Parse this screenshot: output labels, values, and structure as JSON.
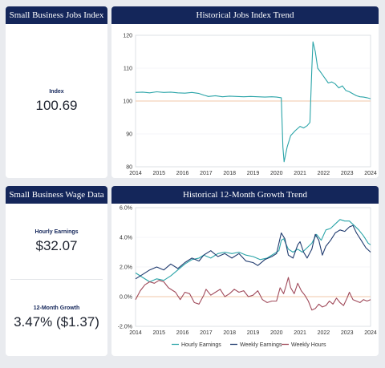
{
  "jobs_card": {
    "title": "Small Business Jobs Index",
    "label": "Index",
    "value": "100.69"
  },
  "trend_card": {
    "title": "Historical Jobs Index Trend"
  },
  "wage_card": {
    "title": "Small Business Wage Data",
    "hourly_label": "Hourly Earnings",
    "hourly_value": "$32.07",
    "growth_label": "12-Month Growth",
    "growth_value": "3.47% ($1.37)"
  },
  "growth_card": {
    "title": "Historical 12-Month Growth Trend"
  },
  "colors": {
    "navy": "#14265a",
    "teal": "#2aa4a8",
    "dark_blue": "#1f3a6e",
    "maroon": "#a04a5a",
    "ref_line": "#f2c7a8"
  },
  "chart_data": [
    {
      "type": "line",
      "title": "Historical Jobs Index Trend",
      "x_ticks": [
        "2014",
        "2015",
        "2016",
        "2017",
        "2018",
        "2019",
        "2020",
        "2021",
        "2022",
        "2023",
        "2024"
      ],
      "y_ticks": [
        "120",
        "110",
        "100",
        "90",
        "80"
      ],
      "ylim": [
        80,
        120
      ],
      "reference_line": 100,
      "series": [
        {
          "values": [
            [
              2014.0,
              102.6
            ],
            [
              2014.3,
              102.7
            ],
            [
              2014.6,
              102.5
            ],
            [
              2014.9,
              102.8
            ],
            [
              2015.2,
              102.6
            ],
            [
              2015.5,
              102.7
            ],
            [
              2015.8,
              102.5
            ],
            [
              2016.1,
              102.4
            ],
            [
              2016.4,
              102.6
            ],
            [
              2016.7,
              102.3
            ],
            [
              2016.9,
              101.8
            ],
            [
              2017.1,
              101.4
            ],
            [
              2017.4,
              101.6
            ],
            [
              2017.7,
              101.3
            ],
            [
              2018.0,
              101.5
            ],
            [
              2018.3,
              101.4
            ],
            [
              2018.6,
              101.3
            ],
            [
              2018.9,
              101.4
            ],
            [
              2019.2,
              101.3
            ],
            [
              2019.5,
              101.2
            ],
            [
              2019.8,
              101.3
            ],
            [
              2020.0,
              101.2
            ],
            [
              2020.2,
              101.0
            ],
            [
              2020.27,
              86.0
            ],
            [
              2020.32,
              81.5
            ],
            [
              2020.45,
              86.0
            ],
            [
              2020.6,
              89.5
            ],
            [
              2020.8,
              91.0
            ],
            [
              2021.0,
              92.3
            ],
            [
              2021.15,
              91.8
            ],
            [
              2021.3,
              92.5
            ],
            [
              2021.42,
              93.5
            ],
            [
              2021.5,
              110.0
            ],
            [
              2021.55,
              118.0
            ],
            [
              2021.65,
              115.0
            ],
            [
              2021.75,
              110.0
            ],
            [
              2021.9,
              108.5
            ],
            [
              2022.05,
              107.0
            ],
            [
              2022.2,
              105.5
            ],
            [
              2022.35,
              105.8
            ],
            [
              2022.5,
              105.2
            ],
            [
              2022.65,
              104.0
            ],
            [
              2022.8,
              104.6
            ],
            [
              2022.95,
              103.2
            ],
            [
              2023.1,
              102.8
            ],
            [
              2023.25,
              102.2
            ],
            [
              2023.4,
              101.6
            ],
            [
              2023.55,
              101.3
            ],
            [
              2023.7,
              101.2
            ],
            [
              2023.85,
              101.0
            ],
            [
              2024.0,
              100.7
            ]
          ]
        }
      ]
    },
    {
      "type": "line",
      "title": "Historical 12-Month Growth Trend",
      "x_ticks": [
        "2014",
        "2015",
        "2016",
        "2017",
        "2018",
        "2019",
        "2020",
        "2021",
        "2022",
        "2023",
        "2024"
      ],
      "y_ticks": [
        "6.0%",
        "4.0%",
        "2.0%",
        "0.0%",
        "-2.0%"
      ],
      "ylim": [
        -2,
        6
      ],
      "reference_line": 0,
      "series": [
        {
          "name": "Hourly Earnings",
          "values": [
            [
              2014.0,
              1.6
            ],
            [
              2014.3,
              1.3
            ],
            [
              2014.6,
              1.0
            ],
            [
              2014.9,
              1.2
            ],
            [
              2015.2,
              1.1
            ],
            [
              2015.5,
              1.4
            ],
            [
              2015.8,
              1.8
            ],
            [
              2016.1,
              2.2
            ],
            [
              2016.4,
              2.5
            ],
            [
              2016.7,
              2.6
            ],
            [
              2016.9,
              2.8
            ],
            [
              2017.2,
              2.6
            ],
            [
              2017.5,
              2.9
            ],
            [
              2017.8,
              3.0
            ],
            [
              2018.1,
              2.9
            ],
            [
              2018.4,
              3.0
            ],
            [
              2018.7,
              2.8
            ],
            [
              2019.0,
              2.7
            ],
            [
              2019.3,
              2.5
            ],
            [
              2019.6,
              2.6
            ],
            [
              2019.9,
              2.9
            ],
            [
              2020.1,
              3.1
            ],
            [
              2020.2,
              3.8
            ],
            [
              2020.3,
              3.9
            ],
            [
              2020.5,
              3.2
            ],
            [
              2020.7,
              3.0
            ],
            [
              2020.9,
              3.2
            ],
            [
              2021.1,
              3.0
            ],
            [
              2021.3,
              3.3
            ],
            [
              2021.5,
              3.6
            ],
            [
              2021.7,
              4.2
            ],
            [
              2021.9,
              3.8
            ],
            [
              2022.1,
              4.5
            ],
            [
              2022.3,
              4.6
            ],
            [
              2022.5,
              4.9
            ],
            [
              2022.7,
              5.2
            ],
            [
              2022.9,
              5.1
            ],
            [
              2023.1,
              5.1
            ],
            [
              2023.3,
              4.8
            ],
            [
              2023.5,
              4.5
            ],
            [
              2023.7,
              4.1
            ],
            [
              2023.9,
              3.6
            ],
            [
              2024.0,
              3.5
            ]
          ]
        },
        {
          "name": "Weekly Earnings",
          "values": [
            [
              2014.0,
              1.2
            ],
            [
              2014.3,
              1.5
            ],
            [
              2014.6,
              1.8
            ],
            [
              2014.9,
              2.0
            ],
            [
              2015.2,
              1.8
            ],
            [
              2015.5,
              2.2
            ],
            [
              2015.8,
              1.9
            ],
            [
              2016.1,
              2.3
            ],
            [
              2016.4,
              2.6
            ],
            [
              2016.7,
              2.4
            ],
            [
              2016.9,
              2.8
            ],
            [
              2017.2,
              3.1
            ],
            [
              2017.5,
              2.7
            ],
            [
              2017.8,
              2.9
            ],
            [
              2018.1,
              2.6
            ],
            [
              2018.4,
              2.9
            ],
            [
              2018.7,
              2.4
            ],
            [
              2019.0,
              2.3
            ],
            [
              2019.2,
              2.1
            ],
            [
              2019.5,
              2.5
            ],
            [
              2019.8,
              2.7
            ],
            [
              2020.0,
              2.9
            ],
            [
              2020.2,
              4.3
            ],
            [
              2020.35,
              3.9
            ],
            [
              2020.5,
              2.8
            ],
            [
              2020.7,
              2.6
            ],
            [
              2020.9,
              3.5
            ],
            [
              2021.0,
              3.7
            ],
            [
              2021.15,
              3.0
            ],
            [
              2021.3,
              2.6
            ],
            [
              2021.5,
              3.2
            ],
            [
              2021.65,
              4.2
            ],
            [
              2021.8,
              3.8
            ],
            [
              2021.95,
              2.8
            ],
            [
              2022.1,
              3.4
            ],
            [
              2022.3,
              3.8
            ],
            [
              2022.5,
              4.3
            ],
            [
              2022.7,
              4.5
            ],
            [
              2022.9,
              4.4
            ],
            [
              2023.1,
              4.7
            ],
            [
              2023.25,
              4.8
            ],
            [
              2023.4,
              4.3
            ],
            [
              2023.6,
              3.8
            ],
            [
              2023.8,
              3.3
            ],
            [
              2024.0,
              3.0
            ]
          ]
        },
        {
          "name": "Weekly Hours",
          "values": [
            [
              2014.0,
              -0.2
            ],
            [
              2014.2,
              0.4
            ],
            [
              2014.4,
              0.8
            ],
            [
              2014.6,
              1.0
            ],
            [
              2014.8,
              0.9
            ],
            [
              2015.0,
              1.1
            ],
            [
              2015.2,
              1.0
            ],
            [
              2015.4,
              0.6
            ],
            [
              2015.7,
              0.3
            ],
            [
              2015.9,
              -0.2
            ],
            [
              2016.1,
              0.3
            ],
            [
              2016.3,
              0.2
            ],
            [
              2016.5,
              -0.4
            ],
            [
              2016.7,
              -0.5
            ],
            [
              2016.9,
              0.1
            ],
            [
              2017.0,
              0.5
            ],
            [
              2017.2,
              0.1
            ],
            [
              2017.4,
              0.3
            ],
            [
              2017.6,
              0.5
            ],
            [
              2017.8,
              0.0
            ],
            [
              2018.0,
              0.2
            ],
            [
              2018.2,
              0.5
            ],
            [
              2018.4,
              0.3
            ],
            [
              2018.6,
              0.4
            ],
            [
              2018.8,
              0.0
            ],
            [
              2019.0,
              0.1
            ],
            [
              2019.2,
              0.4
            ],
            [
              2019.4,
              -0.2
            ],
            [
              2019.6,
              -0.4
            ],
            [
              2019.8,
              -0.3
            ],
            [
              2020.0,
              -0.3
            ],
            [
              2020.15,
              0.6
            ],
            [
              2020.3,
              0.2
            ],
            [
              2020.4,
              0.7
            ],
            [
              2020.5,
              1.3
            ],
            [
              2020.6,
              0.6
            ],
            [
              2020.75,
              0.2
            ],
            [
              2020.9,
              0.9
            ],
            [
              2021.05,
              0.4
            ],
            [
              2021.2,
              0.1
            ],
            [
              2021.35,
              -0.3
            ],
            [
              2021.5,
              -0.9
            ],
            [
              2021.65,
              -0.8
            ],
            [
              2021.8,
              -0.5
            ],
            [
              2021.95,
              -0.7
            ],
            [
              2022.1,
              -0.6
            ],
            [
              2022.25,
              -0.3
            ],
            [
              2022.4,
              -0.5
            ],
            [
              2022.55,
              -0.1
            ],
            [
              2022.7,
              -0.4
            ],
            [
              2022.85,
              -0.6
            ],
            [
              2023.0,
              -0.1
            ],
            [
              2023.1,
              0.3
            ],
            [
              2023.25,
              -0.2
            ],
            [
              2023.4,
              -0.3
            ],
            [
              2023.55,
              -0.4
            ],
            [
              2023.7,
              -0.2
            ],
            [
              2023.85,
              -0.3
            ],
            [
              2024.0,
              -0.2
            ]
          ]
        }
      ]
    }
  ]
}
